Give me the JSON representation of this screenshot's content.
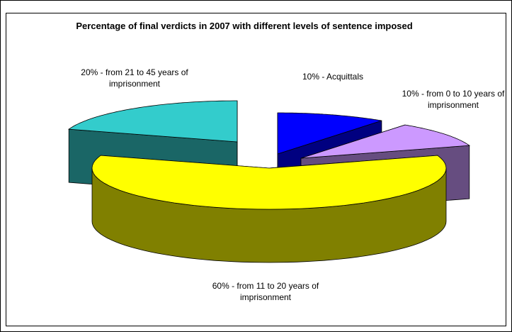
{
  "chart_data": {
    "type": "pie3d",
    "title": "Percentage of final verdicts in 2007 with different levels of sentence imposed",
    "categories": [
      "10% - Acquittals",
      "10% - from 0 to 10 years of imprisonment",
      "60% - from 11 to 20 years of imprisonment",
      "20% - from 21 to 45 years of imprisonment"
    ],
    "values": [
      10,
      10,
      60,
      20
    ],
    "colors": [
      "#0000ff",
      "#cc99ff",
      "#ffff00",
      "#33cccc"
    ]
  }
}
